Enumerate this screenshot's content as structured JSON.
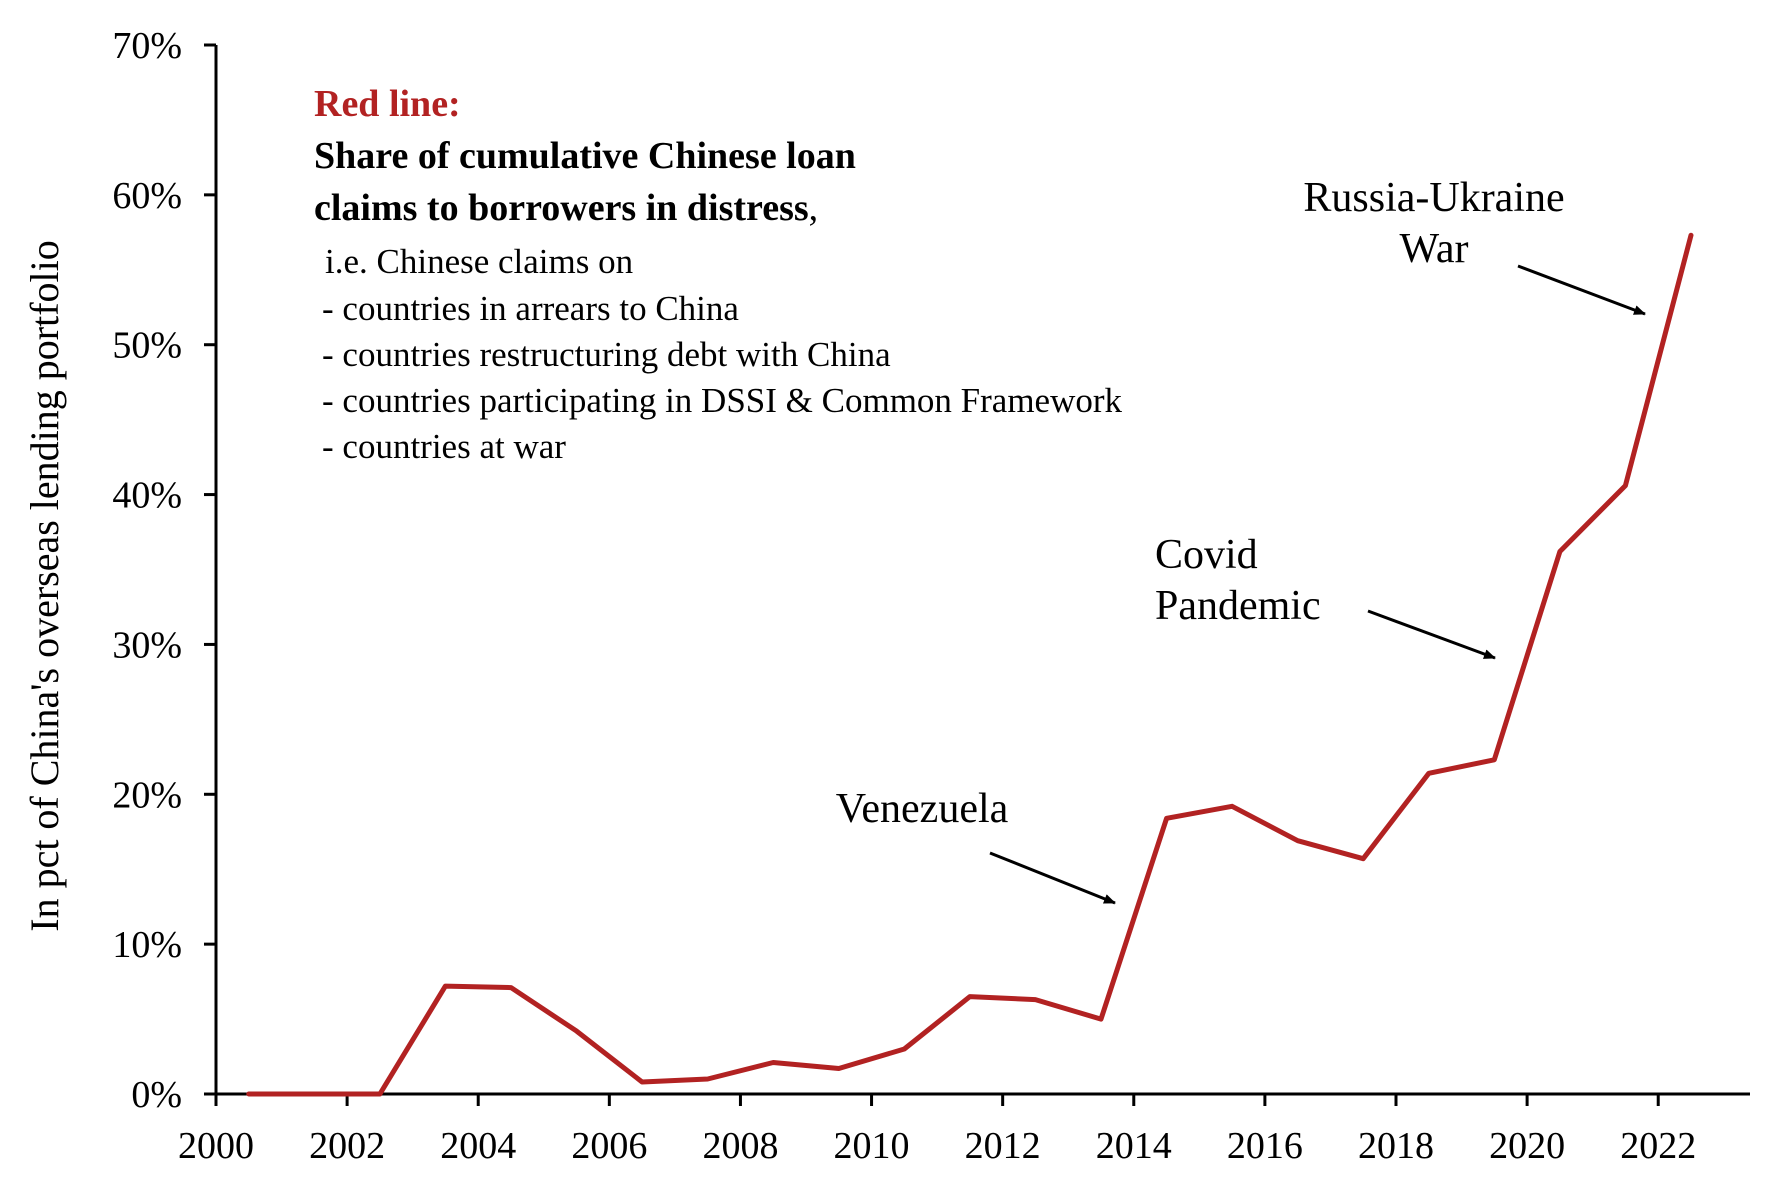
{
  "chart_data": {
    "type": "line",
    "ylabel": "In pct of China's overseas lending portfolio",
    "xlabel": "",
    "ylim": [
      0,
      70
    ],
    "y_ticks": [
      "0%",
      "10%",
      "20%",
      "30%",
      "40%",
      "50%",
      "60%",
      "70%"
    ],
    "x_ticks": [
      "2000",
      "2002",
      "2004",
      "2006",
      "2008",
      "2010",
      "2012",
      "2014",
      "2016",
      "2018",
      "2020",
      "2022"
    ],
    "grid": false,
    "colors": {
      "line": "#b22222",
      "legend_heading": "#b22222",
      "arrows": "#000000"
    },
    "series": [
      {
        "x": [
          2000,
          2001,
          2002,
          2003,
          2004,
          2005,
          2006,
          2007,
          2008,
          2009,
          2010,
          2011,
          2012,
          2013,
          2014,
          2015,
          2016,
          2017,
          2018,
          2019,
          2020,
          2021,
          2022
        ],
        "values": [
          0,
          0,
          0,
          7.2,
          7.1,
          4.2,
          0.8,
          1.0,
          2.1,
          1.7,
          3.0,
          6.5,
          6.3,
          5.0,
          18.4,
          19.2,
          16.9,
          15.7,
          21.4,
          22.3,
          36.2,
          40.6,
          57.3
        ]
      }
    ],
    "legend_note": {
      "heading": "Red line:",
      "bold_line1": "Share of cumulative Chinese loan",
      "bold_line2": "claims to borrowers in distress",
      "bold_suffix": ",",
      "lines": [
        "i.e. Chinese claims on",
        "- countries in arrears to China",
        "- countries restructuring debt with China",
        "- countries participating in DSSI & Common Framework",
        "- countries at war"
      ]
    },
    "annotations": [
      {
        "lines": [
          "Venezuela"
        ],
        "target_x": 2013.5,
        "target_y": 13
      },
      {
        "lines": [
          "Covid",
          "Pandemic"
        ],
        "target_x": 2019.5,
        "target_y": 29
      },
      {
        "lines": [
          "Russia-Ukraine",
          "War"
        ],
        "target_x": 2021.7,
        "target_y": 52.5
      }
    ]
  }
}
